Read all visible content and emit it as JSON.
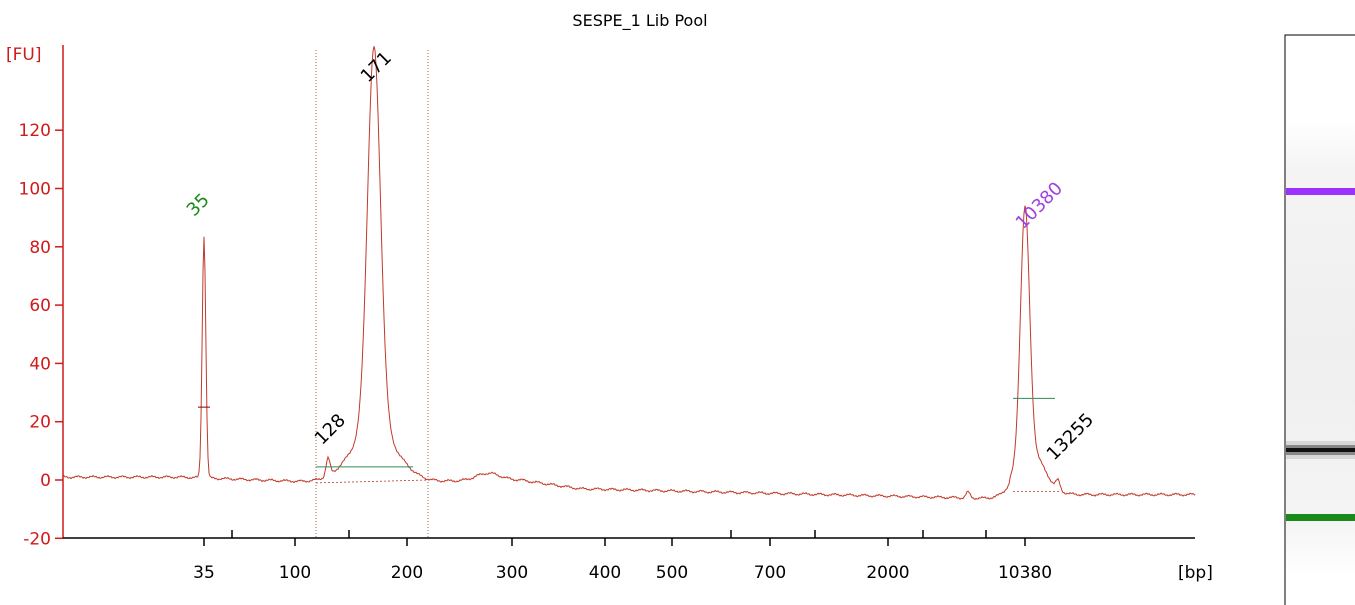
{
  "chart_data": {
    "type": "line",
    "title": "SESPE_1 Lib Pool",
    "ylabel": "[FU]",
    "xlabel": "[bp]",
    "ylim": [
      -20,
      135
    ],
    "yticks": [
      -20,
      0,
      20,
      40,
      60,
      80,
      100,
      120
    ],
    "x_scale": "nonlinear (electropherogram bp ladder)",
    "x_tick_labels": [
      "35",
      "100",
      "200",
      "300",
      "400",
      "500",
      "700",
      "2000",
      "10380"
    ],
    "region_markers_bp": [
      "~115",
      "~220"
    ],
    "series": [
      {
        "points": [
          {
            "x": 35,
            "y": 84
          },
          {
            "x": 128,
            "y": 7
          },
          {
            "x": 171,
            "y": 132
          },
          {
            "x": 10380,
            "y": 81
          },
          {
            "x": 13255,
            "y": 1
          }
        ]
      }
    ],
    "peak_labels": [
      {
        "text": "35",
        "bp": 35,
        "y": 84,
        "color": "#1a8a1a"
      },
      {
        "text": "128",
        "bp": 128,
        "y": 7,
        "color": "#000000"
      },
      {
        "text": "171",
        "bp": 171,
        "y": 132,
        "color": "#000000"
      },
      {
        "text": "10380",
        "bp": 10380,
        "y": 81,
        "color": "#a040e0"
      },
      {
        "text": "13255",
        "bp": 13255,
        "y": 1,
        "color": "#000000"
      }
    ],
    "colors": {
      "trace": "#c0392b",
      "axis": "#d11a1a",
      "baseline": "#2e8b57",
      "lower_marker": "#1a8a1a",
      "upper_marker": "#a040e0"
    },
    "gel_lane": {
      "bands": [
        {
          "name": "upper-marker-band",
          "color": "#9b30ff"
        },
        {
          "name": "sample-band",
          "color": "#111111"
        },
        {
          "name": "lower-marker-band",
          "color": "#1a8a1a"
        }
      ]
    }
  }
}
